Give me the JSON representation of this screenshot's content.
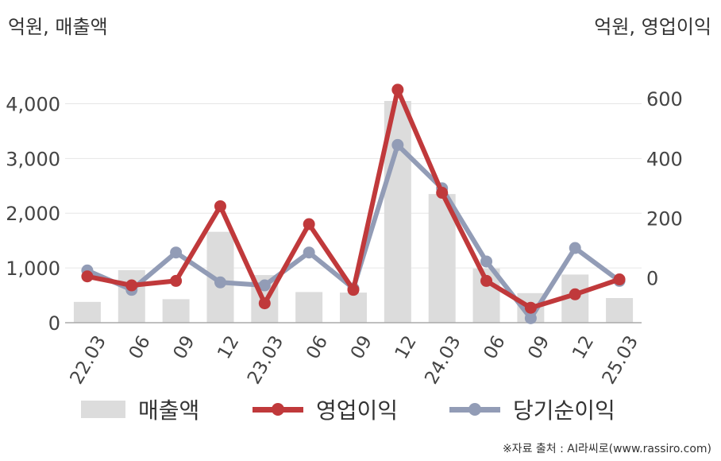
{
  "units": {
    "left": "억원, 매출액",
    "right": "억원, 영업이익"
  },
  "source": "※자료 출처 : AI라씨로(www.rassiro.com)",
  "colors": {
    "revenue": "#dcdcdc",
    "operating_profit": "#c0393b",
    "net_income": "#929cb6",
    "grid": "#e6e6e6",
    "axis": "#aaaaaa"
  },
  "chart_data": {
    "type": "bar+line",
    "categories": [
      "22.03",
      "06",
      "09",
      "12",
      "23.03",
      "06",
      "09",
      "12",
      "24.03",
      "06",
      "09",
      "12",
      "25.03"
    ],
    "left_axis": {
      "ticks": [
        "0",
        "1,000",
        "2,000",
        "3,000",
        "4,000"
      ],
      "ylim": [
        0,
        4500
      ]
    },
    "right_axis": {
      "ticks": [
        "0",
        "200",
        "400",
        "600"
      ],
      "ylim": [
        -150,
        675
      ]
    },
    "series": [
      {
        "name": "매출액",
        "type": "bar",
        "axis": "left",
        "values": [
          380,
          960,
          430,
          1660,
          870,
          560,
          550,
          4050,
          2350,
          990,
          540,
          880,
          450
        ]
      },
      {
        "name": "영업이익",
        "type": "line",
        "axis": "right",
        "values": [
          5,
          -25,
          -10,
          240,
          -85,
          180,
          -40,
          630,
          285,
          -10,
          -100,
          -55,
          -5
        ]
      },
      {
        "name": "당기순이익",
        "type": "line",
        "axis": "right",
        "values": [
          25,
          -40,
          85,
          -15,
          -25,
          85,
          -35,
          445,
          300,
          55,
          -135,
          100,
          -10
        ]
      }
    ],
    "grid": true,
    "legend_position": "bottom"
  }
}
